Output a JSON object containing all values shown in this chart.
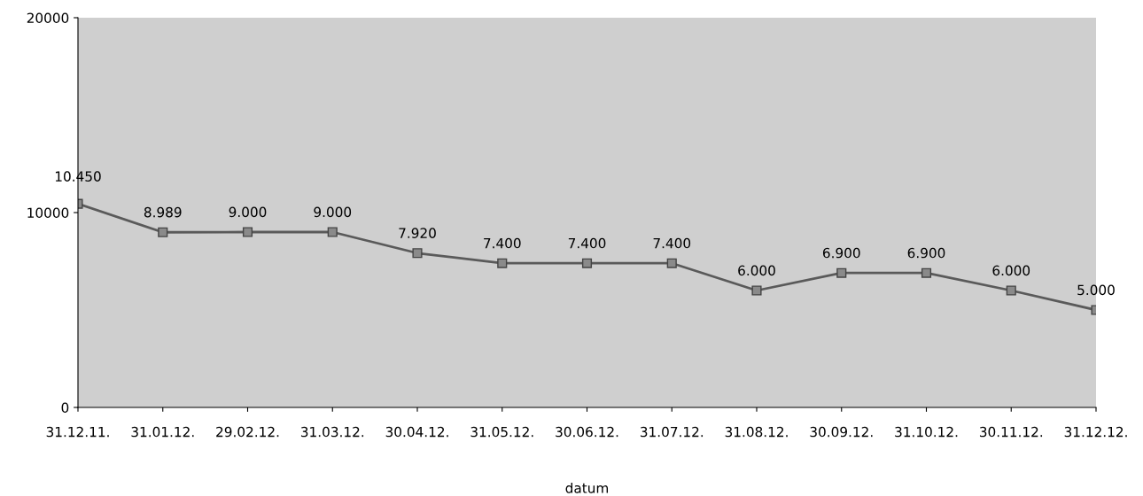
{
  "chart_data": {
    "type": "line",
    "xlabel": "datum",
    "categories": [
      "31.12.11.",
      "31.01.12.",
      "29.02.12.",
      "31.03.12.",
      "30.04.12.",
      "31.05.12.",
      "30.06.12.",
      "31.07.12.",
      "31.08.12.",
      "30.09.12.",
      "31.10.12.",
      "30.11.12.",
      "31.12.12."
    ],
    "series": [
      {
        "color": "#5a5a5a",
        "values": [
          10450,
          8989,
          9000,
          9000,
          7920,
          7400,
          7400,
          7400,
          6000,
          6900,
          6900,
          6000,
          5000
        ],
        "value_labels": [
          "10.450",
          "8.989",
          "9.000",
          "9.000",
          "7.920",
          "7.400",
          "7.400",
          "7.400",
          "6.000",
          "6.900",
          "6.900",
          "6.000",
          "5.000"
        ]
      }
    ],
    "ylim": [
      0,
      20000
    ],
    "yticks": [
      0,
      10000,
      20000
    ],
    "grid": false,
    "marker": "square",
    "line_style": "solid"
  }
}
